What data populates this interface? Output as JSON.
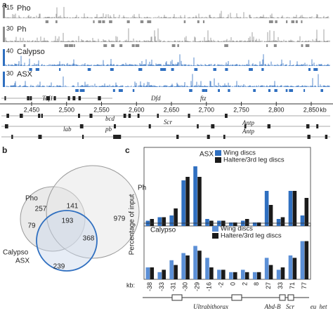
{
  "panels": [
    "a",
    "b",
    "c"
  ],
  "tracks": [
    {
      "name": "Pho",
      "scale": 15,
      "color": "#8c8c8c"
    },
    {
      "name": "Ph",
      "scale": 30,
      "color": "#8c8c8c"
    },
    {
      "name": "Calypso",
      "scale": 40,
      "color": "#2f6fc0"
    },
    {
      "name": "ASX",
      "scale": 30,
      "color": "#2f6fc0"
    }
  ],
  "genome_axis": {
    "ticks": [
      {
        "value": 2450,
        "label": "2,450"
      },
      {
        "value": 2500,
        "label": "2,500"
      },
      {
        "value": 2550,
        "label": "2,550"
      },
      {
        "value": 2600,
        "label": "2,600"
      },
      {
        "value": 2650,
        "label": "2,650"
      },
      {
        "value": 2700,
        "label": "2,700"
      },
      {
        "value": 2750,
        "label": "2,750"
      },
      {
        "value": 2800,
        "label": "2,800"
      },
      {
        "value": 2850,
        "label": "2,850"
      }
    ],
    "unit": "kb"
  },
  "genes": [
    "Taf1",
    "Dfd",
    "ftz",
    "lab",
    "pb",
    "bcd",
    "Scr",
    "Antp",
    "Antp"
  ],
  "venn": {
    "sets": [
      "Pho",
      "Ph",
      "Calypso",
      "ASX"
    ],
    "counts": [
      257,
      141,
      979,
      79,
      193,
      368,
      239
    ]
  },
  "chart_data": [
    {
      "type": "bar",
      "label": "ASX",
      "ylabel": "Percentage of input",
      "ylim": [
        0,
        4
      ],
      "series": [
        {
          "name": "Wing discs",
          "color": "#2f6fc0",
          "values": [
            0.3,
            0.5,
            0.6,
            2.6,
            3.4,
            0.4,
            0.3,
            0.2,
            0.3,
            0.2,
            2.0,
            0.4,
            2.0,
            0.6
          ]
        },
        {
          "name": "Haltere/3rd leg discs",
          "color": "#1a1a1a",
          "values": [
            0.4,
            0.5,
            1.0,
            2.8,
            2.8,
            0.3,
            0.3,
            0.2,
            0.4,
            0.2,
            1.2,
            0.5,
            2.0,
            1.6
          ]
        }
      ]
    },
    {
      "type": "bar",
      "label": "Calypso",
      "ylim": [
        0,
        1
      ],
      "xlabel": "kb:",
      "categories": [
        "-38",
        "-33",
        "-31",
        "-30",
        "-29",
        "-16",
        "-2",
        "0",
        "2",
        "8",
        "27",
        "33",
        "71",
        "77"
      ],
      "series": [
        {
          "name": "Wing discs",
          "color": "#5b8fd6",
          "values": [
            0.25,
            0.15,
            0.4,
            0.55,
            0.7,
            0.45,
            0.2,
            0.15,
            0.2,
            0.15,
            0.45,
            0.2,
            0.5,
            0.8
          ]
        },
        {
          "name": "Haltere/3rd leg discs",
          "color": "#1a1a1a",
          "values": [
            0.25,
            0.2,
            0.3,
            0.5,
            0.6,
            0.25,
            0.2,
            0.15,
            0.15,
            0.15,
            0.3,
            0.25,
            0.45,
            0.8
          ]
        }
      ]
    }
  ],
  "gene_map": [
    "Ultrabithorax",
    "Abd-B",
    "Scr",
    "eu",
    "het"
  ]
}
